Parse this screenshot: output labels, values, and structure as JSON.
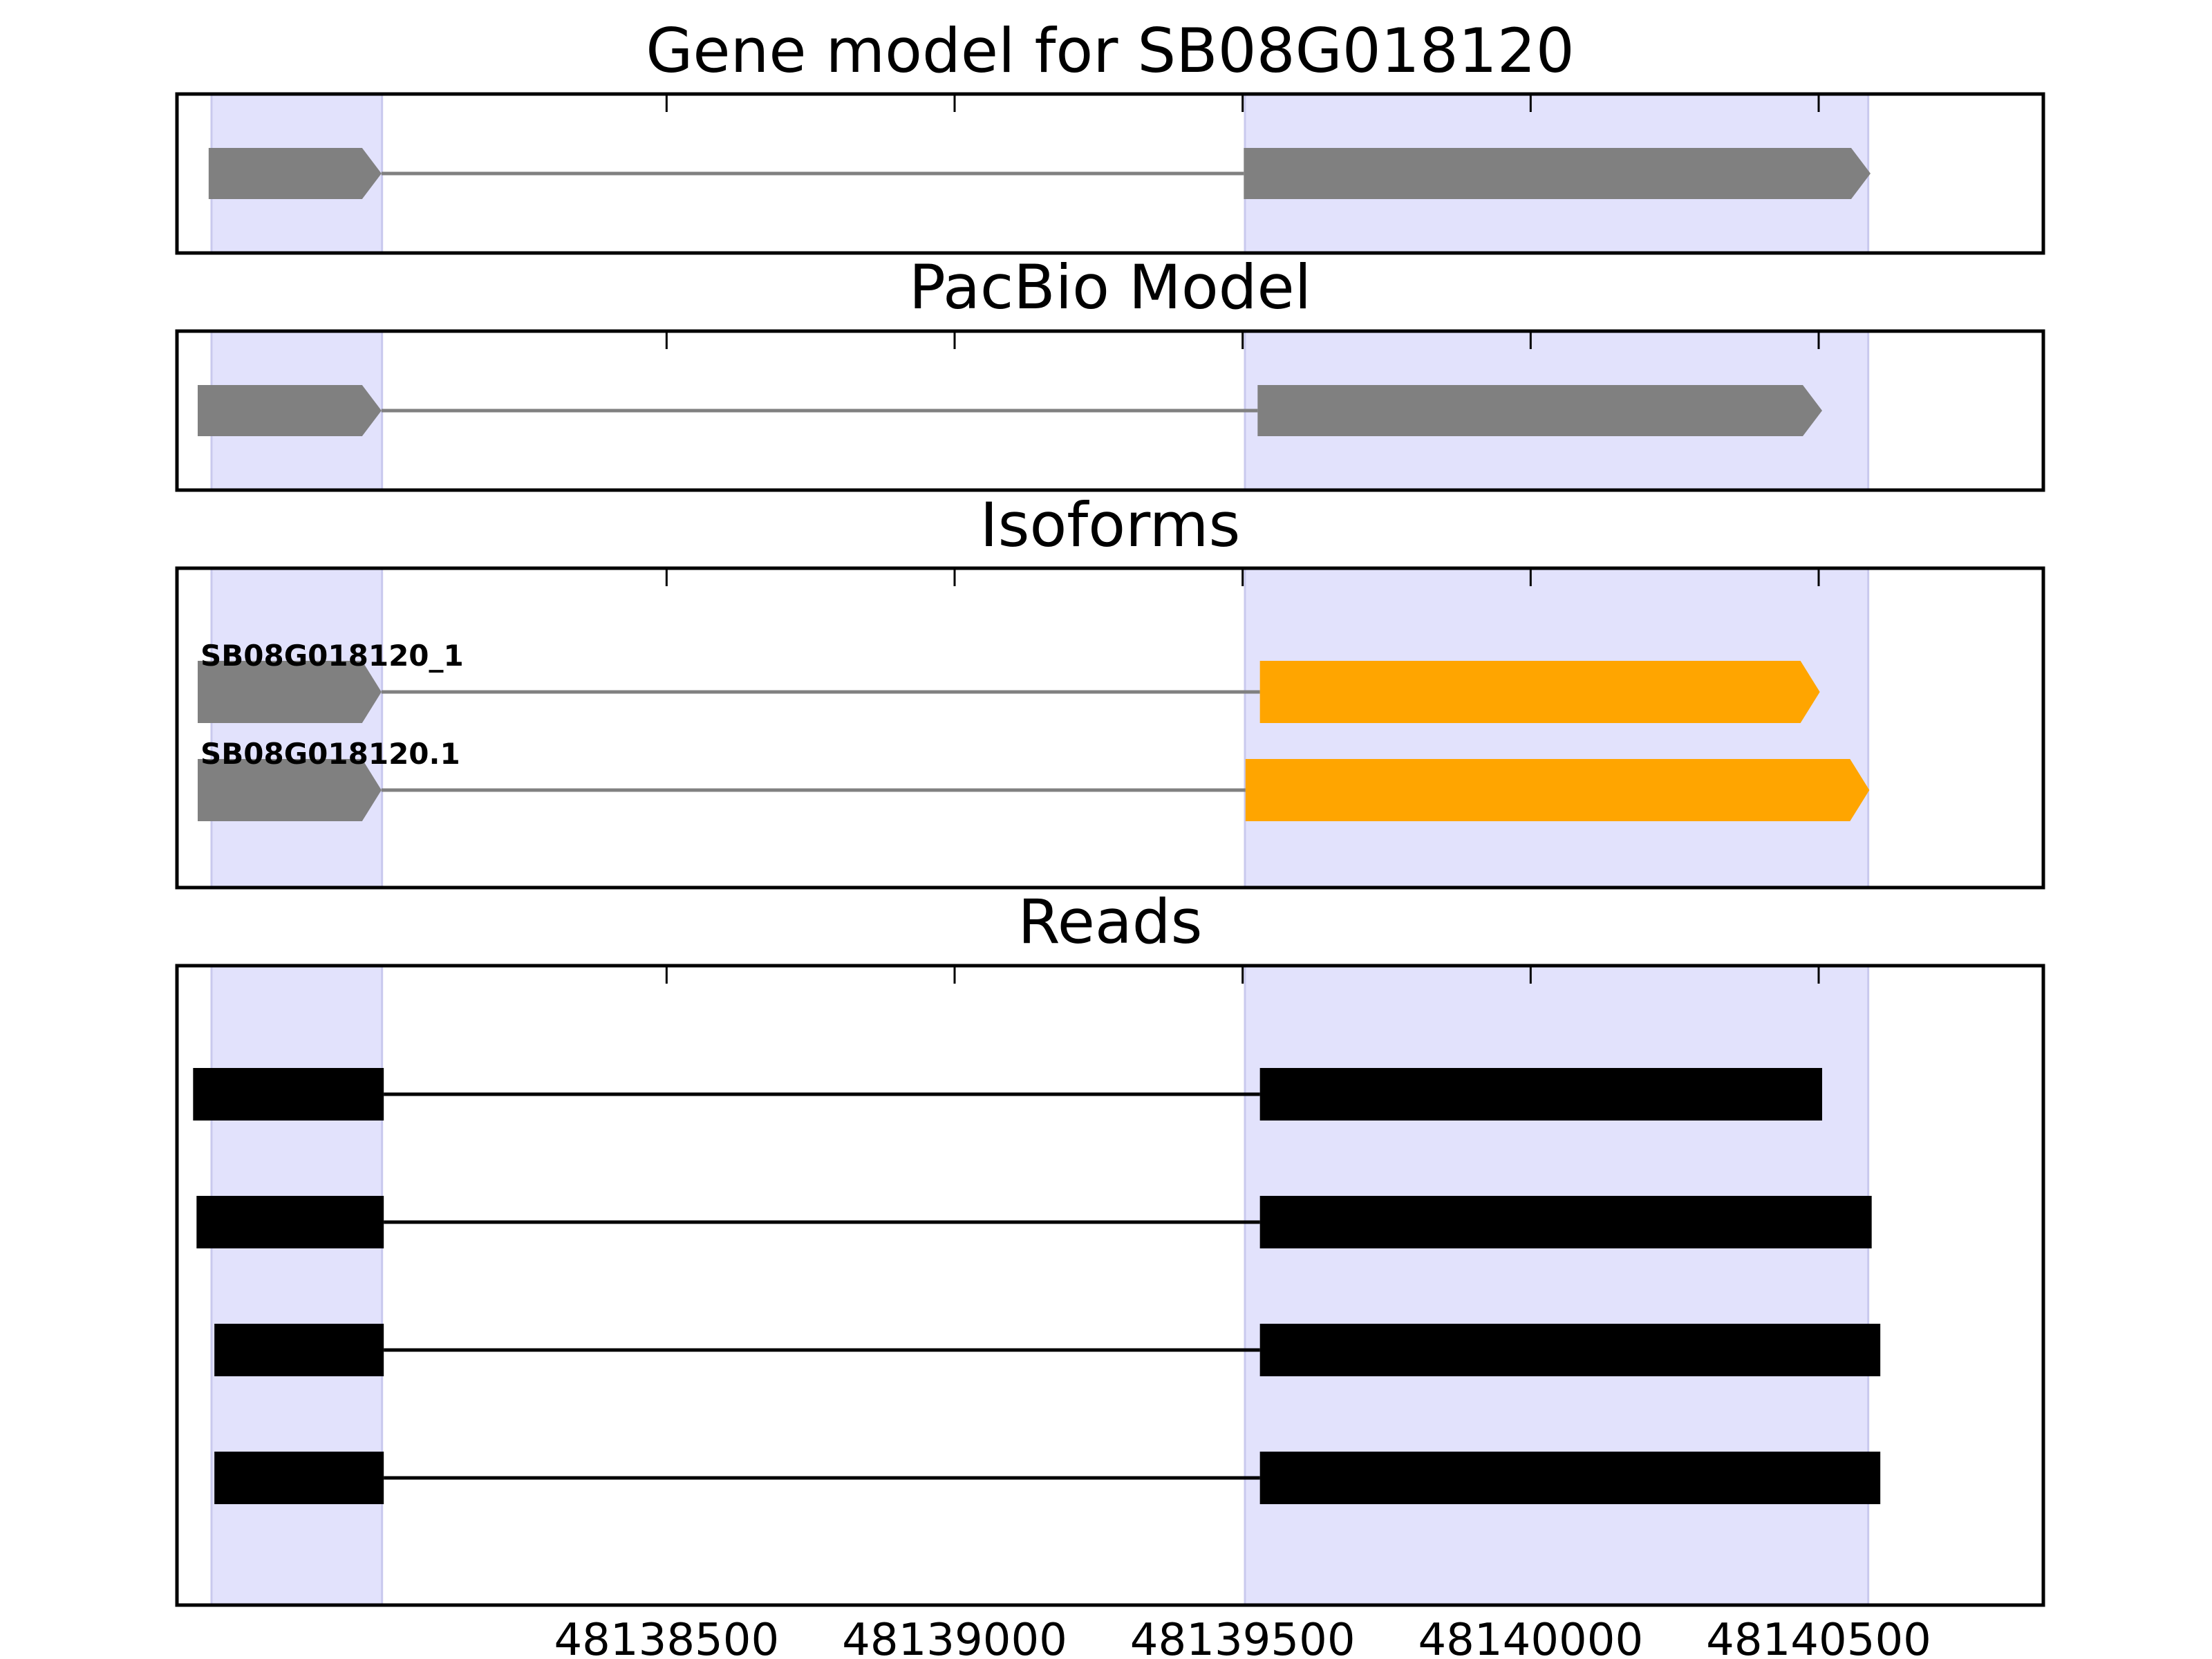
{
  "colors": {
    "exon_region": "#e2e2fc",
    "exon_region_edge": "#c9c9ee",
    "model_feature": "#808080",
    "intron_line": "#808080",
    "isoform_cds": "#ffa500",
    "read_feature": "#000000",
    "axes_frame": "#000000"
  },
  "chart_data": {
    "type": "gene-structure",
    "xlim": [
      48137650,
      48140890
    ],
    "xticks": [
      48138500,
      48139000,
      48139500,
      48140000,
      48140500
    ],
    "xtick_labels": [
      "48138500",
      "48139000",
      "48139500",
      "48140000",
      "48140500"
    ],
    "exon_regions": [
      [
        48137710,
        48138006
      ],
      [
        48139504,
        48140586
      ]
    ],
    "panels": [
      {
        "title": "Gene model for SB08G018120",
        "tracks": [
          {
            "label": "",
            "style": "model",
            "exons": [
              {
                "start": 48137705,
                "end": 48138005,
                "color": "model_feature",
                "arrow": true
              },
              {
                "start": 48139502,
                "end": 48140590,
                "color": "model_feature",
                "arrow": true
              }
            ]
          }
        ]
      },
      {
        "title": "PacBio Model",
        "tracks": [
          {
            "label": "",
            "style": "model",
            "exons": [
              {
                "start": 48137686,
                "end": 48138005,
                "color": "model_feature",
                "arrow": true
              },
              {
                "start": 48139526,
                "end": 48140506,
                "color": "model_feature",
                "arrow": true
              }
            ]
          }
        ]
      },
      {
        "title": "Isoforms",
        "tracks": [
          {
            "label": "SB08G018120_1",
            "style": "model",
            "exons": [
              {
                "start": 48137686,
                "end": 48138005,
                "color": "model_feature",
                "arrow": true
              },
              {
                "start": 48139530,
                "end": 48140502,
                "color": "isoform_cds",
                "arrow": true
              }
            ]
          },
          {
            "label": "SB08G018120.1",
            "style": "model",
            "exons": [
              {
                "start": 48137686,
                "end": 48138005,
                "color": "model_feature",
                "arrow": true
              },
              {
                "start": 48139505,
                "end": 48140588,
                "color": "isoform_cds",
                "arrow": true
              }
            ]
          }
        ]
      },
      {
        "title": "Reads",
        "tracks": [
          {
            "label": "",
            "style": "read",
            "exons": [
              {
                "start": 48137678,
                "end": 48138009
              },
              {
                "start": 48139530,
                "end": 48140506
              }
            ]
          },
          {
            "label": "",
            "style": "read",
            "exons": [
              {
                "start": 48137684,
                "end": 48138009
              },
              {
                "start": 48139530,
                "end": 48140592
              }
            ]
          },
          {
            "label": "",
            "style": "read",
            "exons": [
              {
                "start": 48137715,
                "end": 48138009
              },
              {
                "start": 48139530,
                "end": 48140607
              }
            ]
          },
          {
            "label": "",
            "style": "read",
            "exons": [
              {
                "start": 48137715,
                "end": 48138009
              },
              {
                "start": 48139530,
                "end": 48140607
              }
            ]
          }
        ]
      }
    ]
  }
}
